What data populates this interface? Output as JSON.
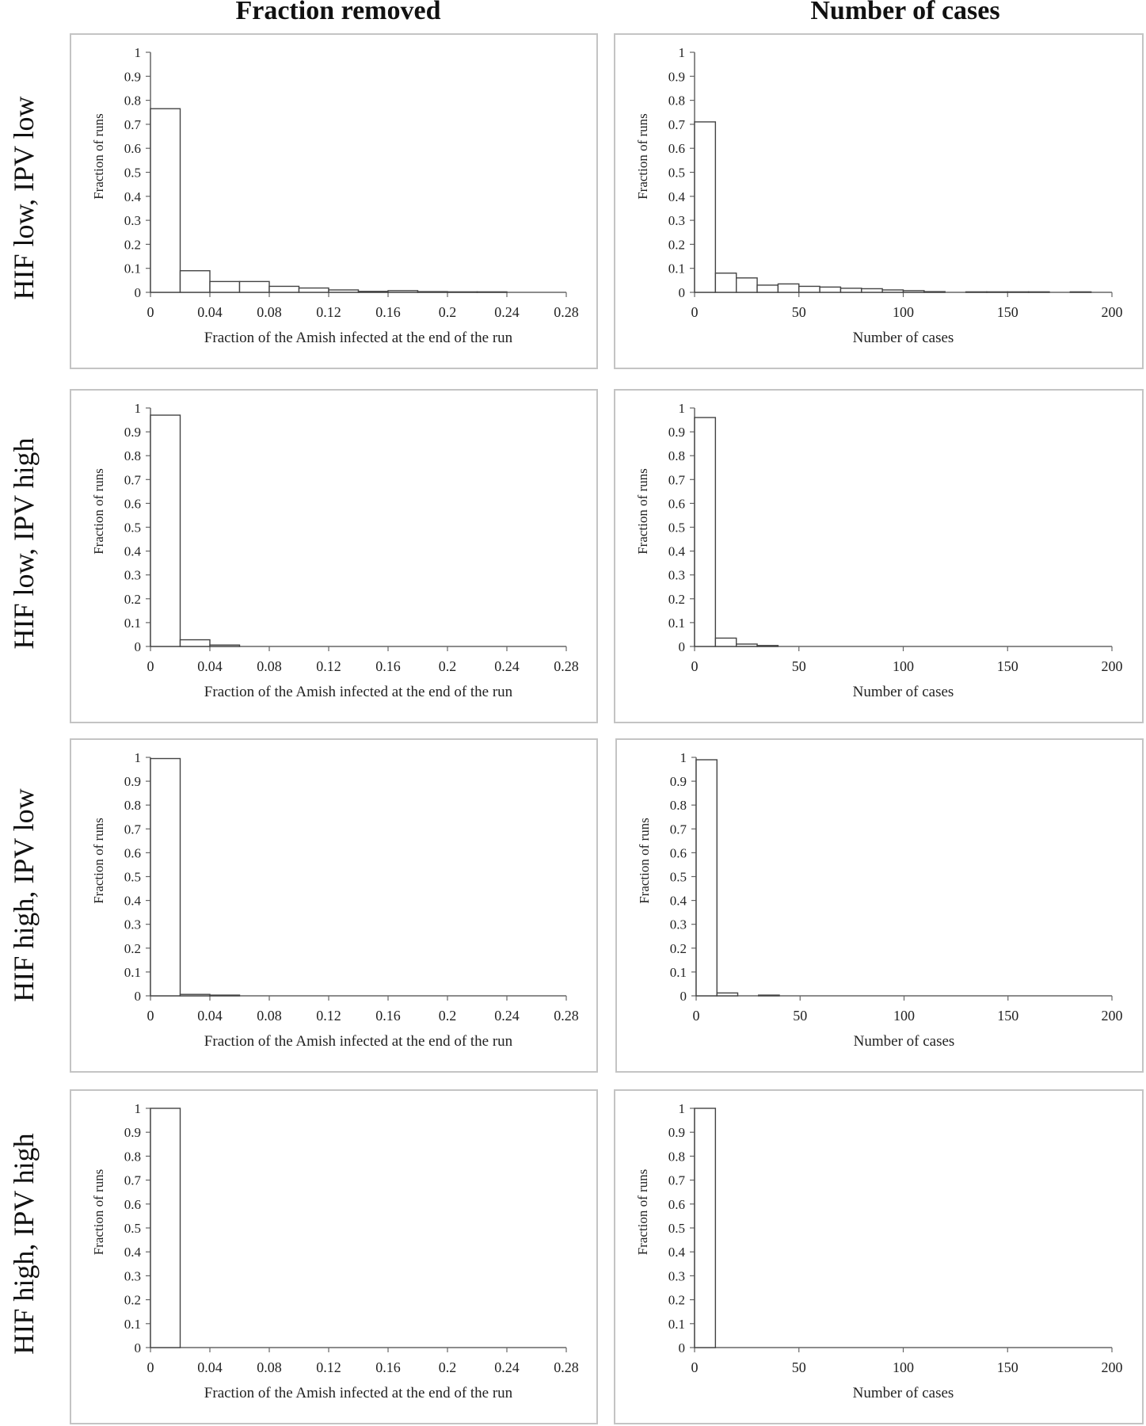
{
  "column_titles": [
    "Fraction removed",
    "Number of cases"
  ],
  "row_titles": [
    "HIF low, IPV low",
    "HIF low, IPV high",
    "HIF high, IPV low",
    "HIF high, IPV high"
  ],
  "chart_data": [
    {
      "type": "bar",
      "panel": "r1c1",
      "xlabel": "Fraction of the Amish infected at the end of the run",
      "ylabel": "Fraction of runs",
      "xlim": [
        0,
        0.28
      ],
      "xticks": [
        "0",
        "0.04",
        "0.08",
        "0.12",
        "0.16",
        "0.2",
        "0.24",
        "0.28"
      ],
      "ylim": [
        0,
        1
      ],
      "yticks": [
        "0",
        "0.1",
        "0.2",
        "0.3",
        "0.4",
        "0.5",
        "0.6",
        "0.7",
        "0.8",
        "0.9",
        "1"
      ],
      "bin_width": 0.02,
      "bin_starts": [
        0,
        0.02,
        0.04,
        0.06,
        0.08,
        0.1,
        0.12,
        0.14,
        0.16,
        0.18,
        0.2,
        0.22
      ],
      "values": [
        0.765,
        0.09,
        0.045,
        0.045,
        0.025,
        0.018,
        0.01,
        0.004,
        0.007,
        0.003,
        0.002,
        0.002
      ]
    },
    {
      "type": "bar",
      "panel": "r1c2",
      "xlabel": "Number of cases",
      "ylabel": "Fraction of runs",
      "xlim": [
        0,
        200
      ],
      "xticks": [
        "0",
        "50",
        "100",
        "150",
        "200"
      ],
      "ylim": [
        0,
        1
      ],
      "yticks": [
        "0",
        "0.1",
        "0.2",
        "0.3",
        "0.4",
        "0.5",
        "0.6",
        "0.7",
        "0.8",
        "0.9",
        "1"
      ],
      "bin_width": 10,
      "bin_starts": [
        0,
        10,
        20,
        30,
        40,
        50,
        60,
        70,
        80,
        90,
        100,
        110,
        130,
        140,
        150,
        160,
        180
      ],
      "values": [
        0.71,
        0.08,
        0.06,
        0.03,
        0.035,
        0.025,
        0.022,
        0.017,
        0.015,
        0.01,
        0.007,
        0.003,
        0.002,
        0.002,
        0.002,
        0.002,
        0.002
      ]
    },
    {
      "type": "bar",
      "panel": "r2c1",
      "xlabel": "Fraction of the Amish infected at the end of the run",
      "ylabel": "Fraction of runs",
      "xlim": [
        0,
        0.28
      ],
      "xticks": [
        "0",
        "0.04",
        "0.08",
        "0.12",
        "0.16",
        "0.2",
        "0.24",
        "0.28"
      ],
      "ylim": [
        0,
        1
      ],
      "yticks": [
        "0",
        "0.1",
        "0.2",
        "0.3",
        "0.4",
        "0.5",
        "0.6",
        "0.7",
        "0.8",
        "0.9",
        "1"
      ],
      "bin_width": 0.02,
      "bin_starts": [
        0,
        0.02,
        0.04
      ],
      "values": [
        0.97,
        0.028,
        0.006
      ]
    },
    {
      "type": "bar",
      "panel": "r2c2",
      "xlabel": "Number of cases",
      "ylabel": "Fraction of runs",
      "xlim": [
        0,
        200
      ],
      "xticks": [
        "0",
        "50",
        "100",
        "150",
        "200"
      ],
      "ylim": [
        0,
        1
      ],
      "yticks": [
        "0",
        "0.1",
        "0.2",
        "0.3",
        "0.4",
        "0.5",
        "0.6",
        "0.7",
        "0.8",
        "0.9",
        "1"
      ],
      "bin_width": 10,
      "bin_starts": [
        0,
        10,
        20,
        30
      ],
      "values": [
        0.96,
        0.035,
        0.01,
        0.004
      ]
    },
    {
      "type": "bar",
      "panel": "r3c1",
      "xlabel": "Fraction of the Amish infected at the end of the run",
      "ylabel": "Fraction of runs",
      "xlim": [
        0,
        0.28
      ],
      "xticks": [
        "0",
        "0.04",
        "0.08",
        "0.12",
        "0.16",
        "0.2",
        "0.24",
        "0.28"
      ],
      "ylim": [
        0,
        1
      ],
      "yticks": [
        "0",
        "0.1",
        "0.2",
        "0.3",
        "0.4",
        "0.5",
        "0.6",
        "0.7",
        "0.8",
        "0.9",
        "1"
      ],
      "bin_width": 0.02,
      "bin_starts": [
        0,
        0.02,
        0.04
      ],
      "values": [
        0.995,
        0.006,
        0.003
      ]
    },
    {
      "type": "bar",
      "panel": "r3c2",
      "xlabel": "Number of cases",
      "ylabel": "Fraction of runs",
      "xlim": [
        0,
        200
      ],
      "xticks": [
        "0",
        "50",
        "100",
        "150",
        "200"
      ],
      "ylim": [
        0,
        1
      ],
      "yticks": [
        "0",
        "0.1",
        "0.2",
        "0.3",
        "0.4",
        "0.5",
        "0.6",
        "0.7",
        "0.8",
        "0.9",
        "1"
      ],
      "bin_width": 10,
      "bin_starts": [
        0,
        10,
        30
      ],
      "values": [
        0.99,
        0.012,
        0.003
      ]
    },
    {
      "type": "bar",
      "panel": "r4c1",
      "xlabel": "Fraction of the Amish infected at the end of the run",
      "ylabel": "Fraction of runs",
      "xlim": [
        0,
        0.28
      ],
      "xticks": [
        "0",
        "0.04",
        "0.08",
        "0.12",
        "0.16",
        "0.2",
        "0.24",
        "0.28"
      ],
      "ylim": [
        0,
        1
      ],
      "yticks": [
        "0",
        "0.1",
        "0.2",
        "0.3",
        "0.4",
        "0.5",
        "0.6",
        "0.7",
        "0.8",
        "0.9",
        "1"
      ],
      "bin_width": 0.02,
      "bin_starts": [
        0
      ],
      "values": [
        1.0
      ]
    },
    {
      "type": "bar",
      "panel": "r4c2",
      "xlabel": "Number of cases",
      "ylabel": "Fraction of runs",
      "xlim": [
        0,
        200
      ],
      "xticks": [
        "0",
        "50",
        "100",
        "150",
        "200"
      ],
      "ylim": [
        0,
        1
      ],
      "yticks": [
        "0",
        "0.1",
        "0.2",
        "0.3",
        "0.4",
        "0.5",
        "0.6",
        "0.7",
        "0.8",
        "0.9",
        "1"
      ],
      "bin_width": 10,
      "bin_starts": [
        0
      ],
      "values": [
        1.0
      ]
    }
  ]
}
